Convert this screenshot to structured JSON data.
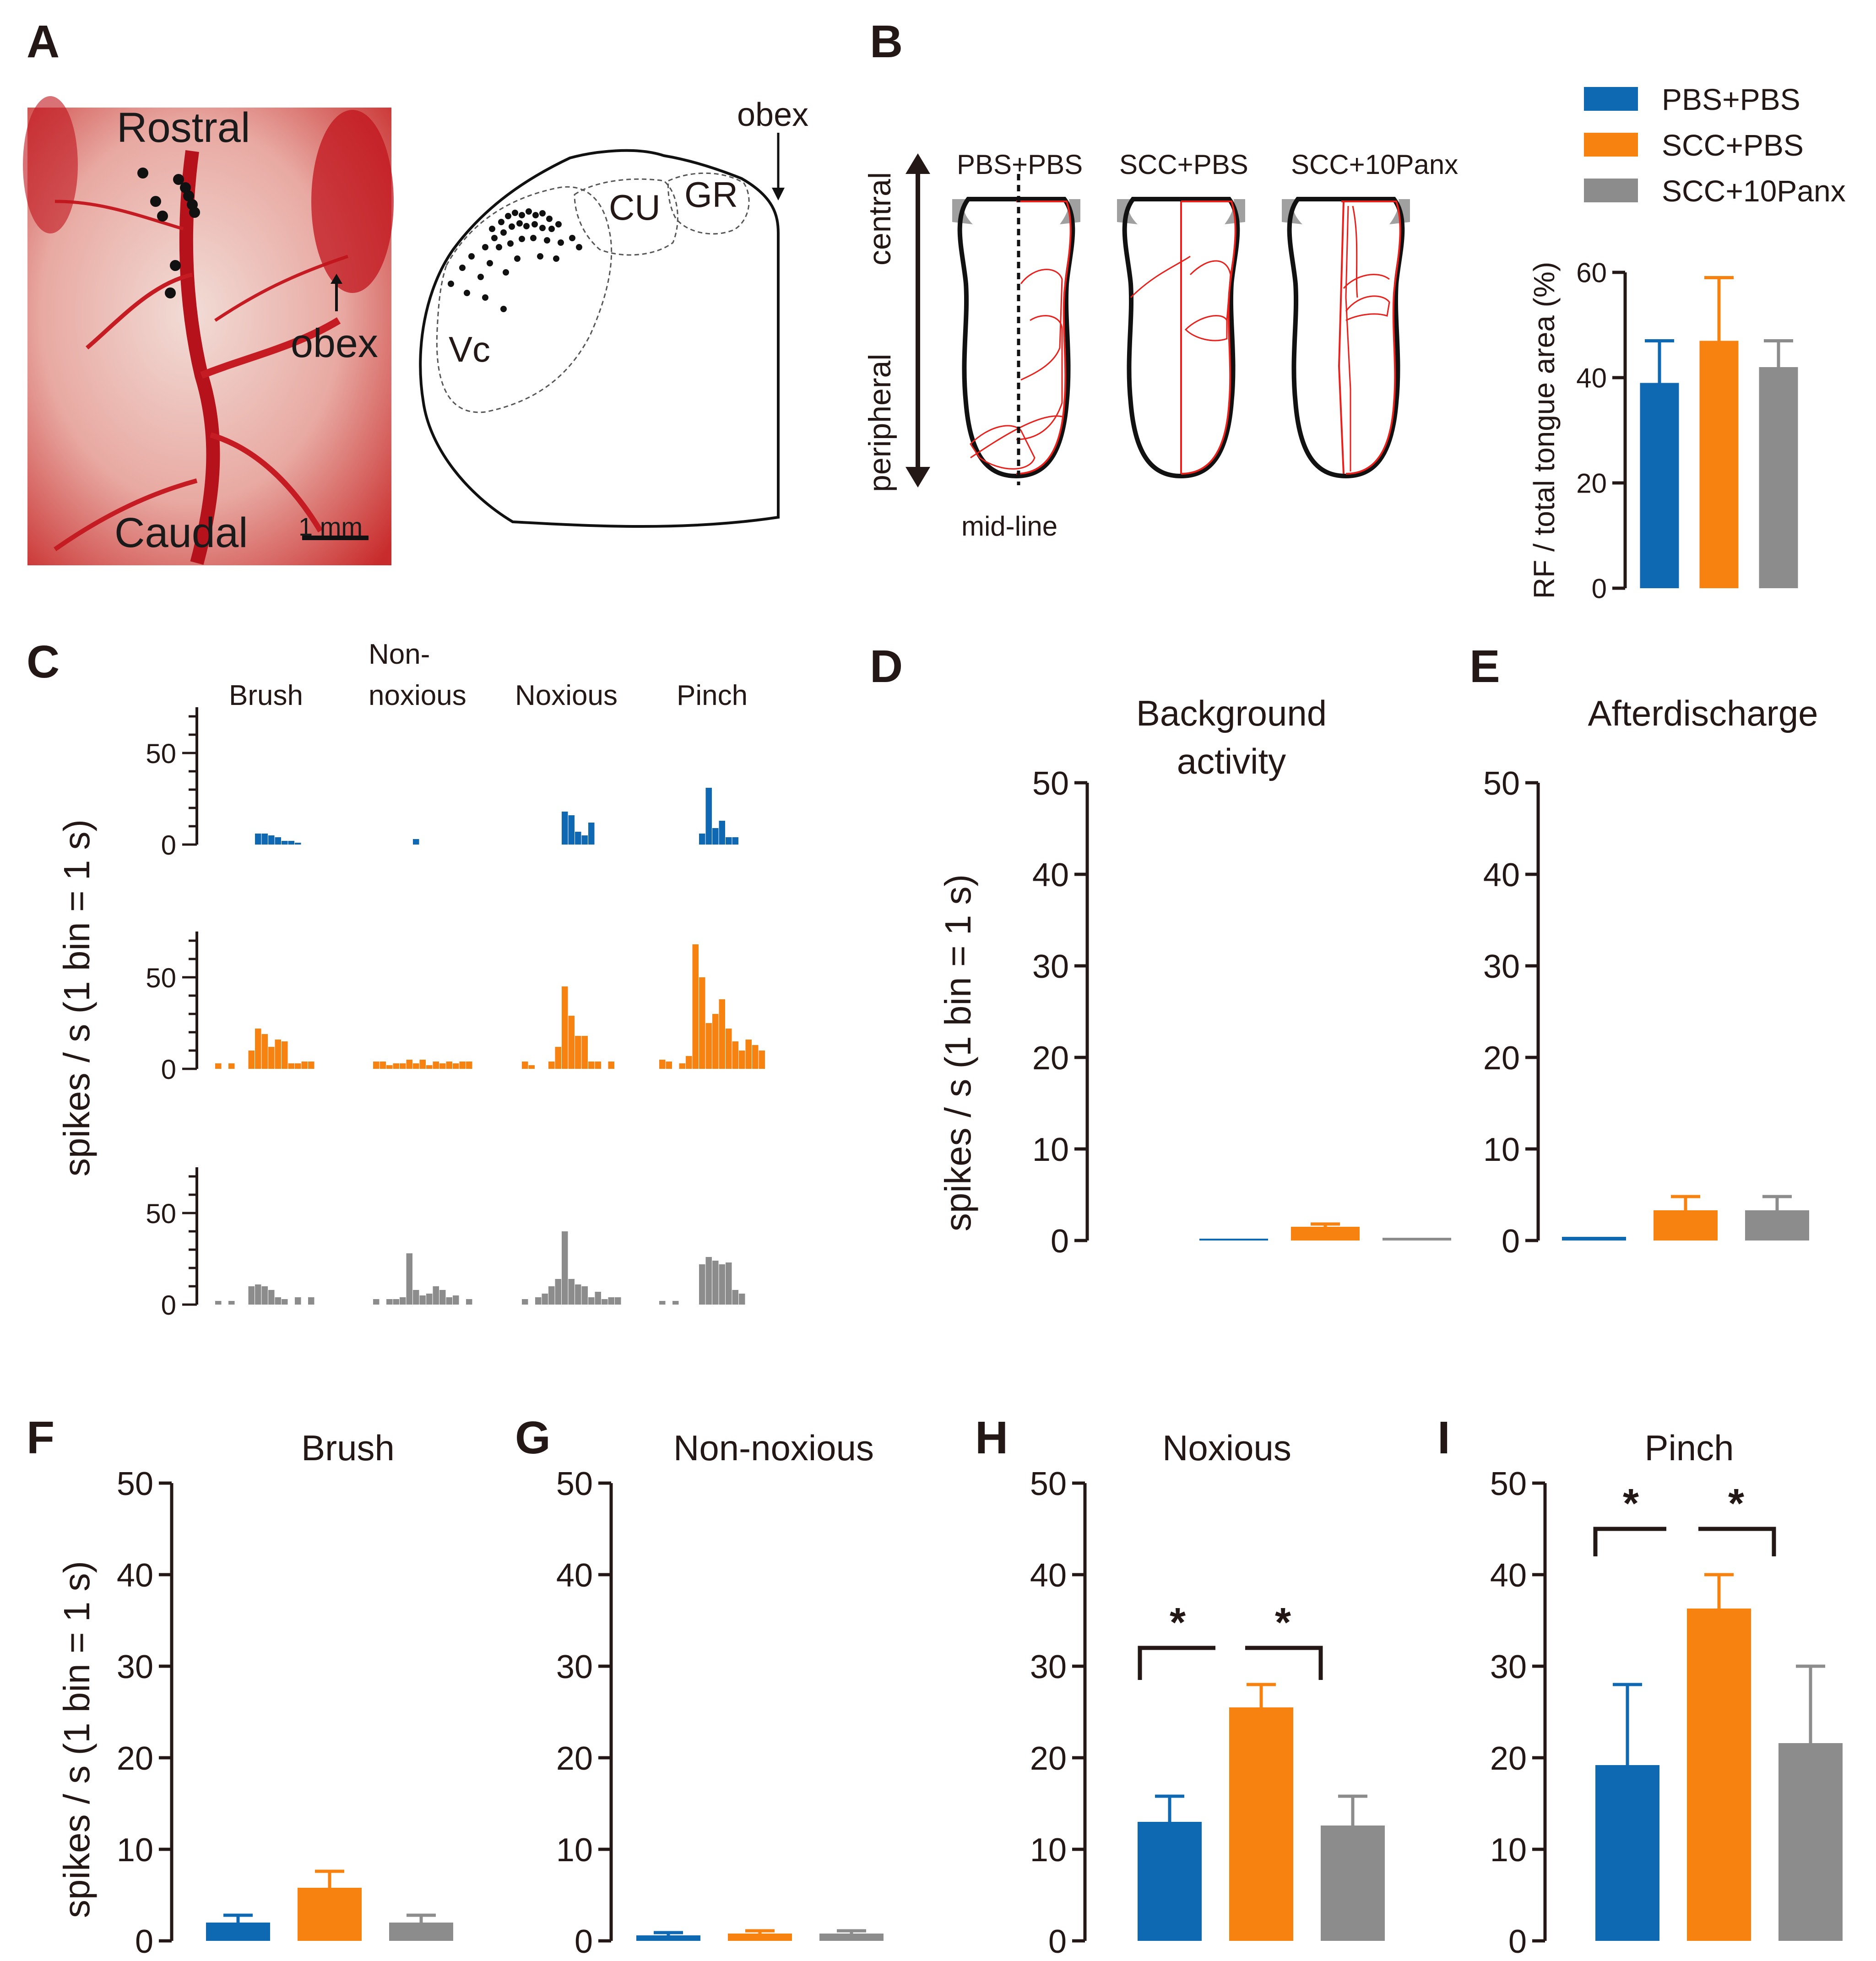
{
  "colors": {
    "PBS+PBS": "#0f68b2",
    "SCC+PBS": "#f7820f",
    "SCC+10Panx": "#8c8c8c",
    "rf_outline": "#e8211c",
    "axis": "#231815"
  },
  "panels": {
    "A": {
      "letter": "A",
      "photo": {
        "rostral": "Rostral",
        "caudal": "Caudal",
        "obex": "obex",
        "scale": "1 mm"
      },
      "schematic": {
        "obex": "obex",
        "cu": "CU",
        "gr": "GR",
        "vc": "Vc"
      }
    },
    "B": {
      "letter": "B",
      "axis_top": "central",
      "axis_bottom": "peripheral",
      "midline": "mid-line",
      "groups": [
        "PBS+PBS",
        "SCC+PBS",
        "SCC+10Panx"
      ]
    },
    "C": {
      "letter": "C",
      "ylabel": "spikes / s (1 bin = 1 s)",
      "stimuli": [
        "Brush",
        "Non-",
        "noxious",
        "Noxious",
        "Pinch"
      ]
    },
    "D": {
      "letter": "D",
      "title_line1": "Background",
      "title_line2": "activity",
      "ylabel": "spikes / s (1 bin = 1 s)"
    },
    "E": {
      "letter": "E",
      "title": "Afterdischarge"
    },
    "F": {
      "letter": "F",
      "title": "Brush",
      "ylabel": "spikes / s (1 bin = 1 s)"
    },
    "G": {
      "letter": "G",
      "title": "Non-noxious"
    },
    "H": {
      "letter": "H",
      "title": "Noxious",
      "sig": "*"
    },
    "I": {
      "letter": "I",
      "title": "Pinch",
      "sig": "*"
    }
  },
  "legend": [
    "PBS+PBS",
    "SCC+PBS",
    "SCC+10Panx"
  ],
  "chart_data": [
    {
      "id": "B-bar",
      "type": "bar",
      "ylabel": "RF / total tongue area (%)",
      "categories": [
        "PBS+PBS",
        "SCC+PBS",
        "SCC+10Panx"
      ],
      "values": [
        39,
        47,
        42
      ],
      "errors": [
        8,
        12,
        5
      ],
      "ylim": [
        0,
        60
      ],
      "yticks": [
        "0",
        "20",
        "40",
        "60"
      ]
    },
    {
      "id": "C-histograms",
      "type": "bar",
      "ylabel": "spikes / s (1 bin = 1 s)",
      "stimuli": [
        "Brush",
        "Non-noxious",
        "Noxious",
        "Pinch"
      ],
      "ylim": [
        0,
        75
      ],
      "yticks": [
        "0",
        "50"
      ],
      "rows": [
        {
          "group": "PBS+PBS",
          "bins": [
            [
              0,
              0,
              0,
              0,
              0,
              0,
              6,
              6,
              5,
              4,
              2,
              2,
              1,
              0,
              0,
              0,
              0
            ],
            [
              0,
              0,
              0,
              0,
              0,
              0,
              3,
              0,
              0,
              0,
              0,
              0,
              0,
              0,
              0,
              0,
              0
            ],
            [
              0,
              0,
              0,
              0,
              0,
              0,
              18,
              16,
              7,
              5,
              12,
              0,
              0,
              0,
              0,
              0,
              0
            ],
            [
              0,
              0,
              0,
              0,
              0,
              0,
              6,
              31,
              9,
              13,
              4,
              4,
              0,
              0,
              0,
              0,
              0
            ]
          ]
        },
        {
          "group": "SCC+PBS",
          "bins": [
            [
              3,
              0,
              3,
              0,
              0,
              10,
              22,
              19,
              12,
              16,
              15,
              3,
              3,
              4,
              4,
              0,
              0
            ],
            [
              4,
              4,
              2,
              3,
              3,
              5,
              3,
              5,
              2,
              4,
              3,
              4,
              3,
              4,
              4,
              0,
              0
            ],
            [
              4,
              2,
              0,
              0,
              4,
              12,
              45,
              29,
              18,
              18,
              4,
              4,
              0,
              4,
              0,
              0,
              0
            ],
            [
              5,
              4,
              0,
              3,
              7,
              68,
              50,
              25,
              30,
              38,
              22,
              15,
              10,
              16,
              13,
              10,
              0
            ]
          ]
        },
        {
          "group": "SCC+10Panx",
          "bins": [
            [
              2,
              0,
              2,
              0,
              0,
              10,
              11,
              10,
              8,
              4,
              3,
              0,
              4,
              0,
              4,
              0,
              0
            ],
            [
              3,
              0,
              3,
              3,
              4,
              28,
              8,
              5,
              6,
              10,
              8,
              4,
              5,
              0,
              3,
              0,
              0
            ],
            [
              3,
              0,
              4,
              6,
              10,
              14,
              40,
              14,
              11,
              10,
              4,
              7,
              3,
              4,
              4,
              0,
              0
            ],
            [
              2,
              0,
              2,
              0,
              0,
              0,
              22,
              26,
              24,
              22,
              23,
              8,
              6,
              0,
              0,
              0,
              0
            ]
          ]
        }
      ]
    },
    {
      "id": "D",
      "type": "bar",
      "title": "Background activity",
      "categories": [
        "PBS+PBS",
        "SCC+PBS",
        "SCC+10Panx"
      ],
      "values": [
        0,
        1.5,
        0.3
      ],
      "errors": [
        0,
        0.3,
        0
      ],
      "ylim": [
        0,
        50
      ],
      "yticks": [
        "0",
        "10",
        "20",
        "30",
        "40",
        "50"
      ],
      "ylabel": "spikes / s (1 bin = 1 s)"
    },
    {
      "id": "E",
      "type": "bar",
      "title": "Afterdischarge",
      "categories": [
        "PBS+PBS",
        "SCC+PBS",
        "SCC+10Panx"
      ],
      "values": [
        0.4,
        3.3,
        3.3
      ],
      "errors": [
        0,
        1.5,
        1.5
      ],
      "ylim": [
        0,
        50
      ],
      "yticks": [
        "0",
        "10",
        "20",
        "30",
        "40",
        "50"
      ]
    },
    {
      "id": "F",
      "type": "bar",
      "title": "Brush",
      "categories": [
        "PBS+PBS",
        "SCC+PBS",
        "SCC+10Panx"
      ],
      "values": [
        2,
        5.8,
        2
      ],
      "errors": [
        0.8,
        1.8,
        0.8
      ],
      "ylim": [
        0,
        50
      ],
      "yticks": [
        "0",
        "10",
        "20",
        "30",
        "40",
        "50"
      ],
      "ylabel": "spikes / s (1 bin = 1 s)"
    },
    {
      "id": "G",
      "type": "bar",
      "title": "Non-noxious",
      "categories": [
        "PBS+PBS",
        "SCC+PBS",
        "SCC+10Panx"
      ],
      "values": [
        0.6,
        0.8,
        0.8
      ],
      "errors": [
        0.3,
        0.3,
        0.3
      ],
      "ylim": [
        0,
        50
      ],
      "yticks": [
        "0",
        "10",
        "20",
        "30",
        "40",
        "50"
      ]
    },
    {
      "id": "H",
      "type": "bar",
      "title": "Noxious",
      "categories": [
        "PBS+PBS",
        "SCC+PBS",
        "SCC+10Panx"
      ],
      "values": [
        13,
        25.5,
        12.6
      ],
      "errors": [
        2.8,
        2.5,
        3.2
      ],
      "ylim": [
        0,
        50
      ],
      "yticks": [
        "0",
        "10",
        "20",
        "30",
        "40",
        "50"
      ]
    },
    {
      "id": "I",
      "type": "bar",
      "title": "Pinch",
      "categories": [
        "PBS+PBS",
        "SCC+PBS",
        "SCC+10Panx"
      ],
      "values": [
        19.2,
        36.3,
        21.6
      ],
      "errors": [
        8.8,
        3.7,
        8.4
      ],
      "ylim": [
        0,
        50
      ],
      "yticks": [
        "0",
        "10",
        "20",
        "30",
        "40",
        "50"
      ]
    }
  ]
}
